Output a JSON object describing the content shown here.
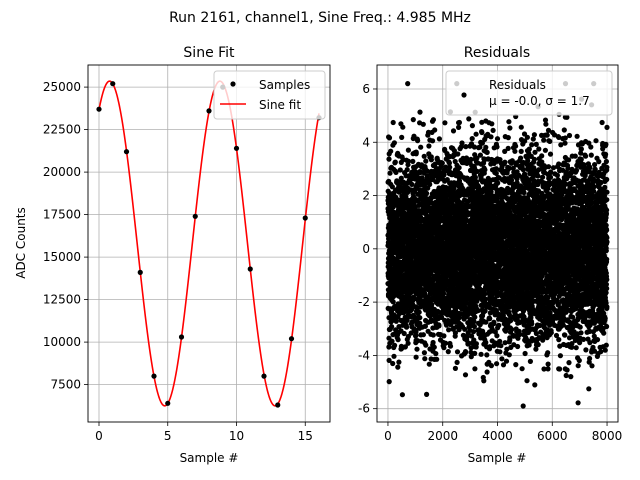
{
  "suptitle": "Run 2161, channel1, Sine Freq.: 4.985 MHz",
  "colors": {
    "samples": "#000000",
    "fit": "#ff0000",
    "residuals": "#000000",
    "grid": "#b0b0b0"
  },
  "chart_data": [
    {
      "type": "scatter+line",
      "title": "Sine Fit",
      "xlabel": "Sample #",
      "ylabel": "ADC Counts",
      "xlim": [
        -0.8,
        16.8
      ],
      "ylim": [
        5300,
        26300
      ],
      "xticks": [
        0,
        5,
        10,
        15
      ],
      "yticks": [
        7500,
        10000,
        12500,
        15000,
        17500,
        20000,
        22500,
        25000
      ],
      "grid": true,
      "legend_position": "upper-right",
      "series": [
        {
          "name": "Samples",
          "kind": "points",
          "x": [
            0,
            1,
            2,
            3,
            4,
            5,
            6,
            7,
            8,
            9,
            10,
            11,
            12,
            13,
            14,
            15,
            16
          ],
          "y": [
            23700,
            25200,
            21200,
            14100,
            8000,
            6400,
            10300,
            17400,
            23600,
            25000,
            21400,
            14300,
            8000,
            6300,
            10200,
            17300,
            23200
          ]
        },
        {
          "name": "Sine fit",
          "kind": "line",
          "model": {
            "offset": 15800,
            "amplitude": 9550,
            "samples_per_period": 8.0245,
            "peak_at_sample": 0.77
          }
        }
      ]
    },
    {
      "type": "scatter",
      "title": "Residuals",
      "xlabel": "Sample #",
      "ylabel": "",
      "xlim": [
        -400,
        8400
      ],
      "ylim": [
        -6.5,
        6.9
      ],
      "xticks": [
        0,
        2000,
        4000,
        6000,
        8000
      ],
      "yticks": [
        -6,
        -4,
        -2,
        0,
        2,
        4,
        6
      ],
      "grid": true,
      "legend_position": "upper-right",
      "series": [
        {
          "name": "Residuals",
          "kind": "points",
          "n_points": 8000,
          "mean": 0.0,
          "std": 1.7,
          "x_range": [
            0,
            7999
          ],
          "y_range": [
            -5.9,
            6.2
          ]
        }
      ],
      "legend_entries": [
        "Residuals",
        "μ = -0.0, σ = 1.7"
      ]
    }
  ]
}
